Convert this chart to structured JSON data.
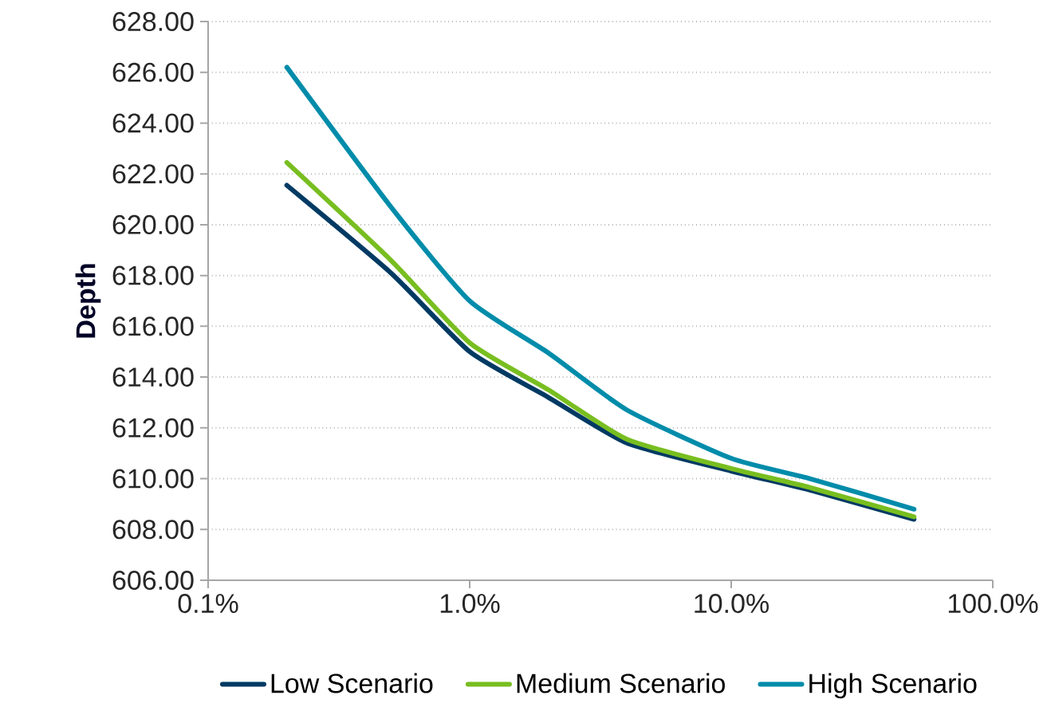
{
  "chart_data": {
    "type": "line",
    "ylabel": "Depth",
    "x": [
      0.2,
      0.5,
      1,
      2,
      4,
      10,
      20,
      50
    ],
    "series": [
      {
        "name": "Low Scenario",
        "color": "#003a63",
        "values": [
          621.55,
          618.1,
          615.0,
          613.2,
          611.4,
          610.3,
          609.55,
          608.4
        ]
      },
      {
        "name": "Medium Scenario",
        "color": "#78be20",
        "values": [
          622.45,
          618.6,
          615.35,
          613.5,
          611.55,
          610.4,
          609.65,
          608.5
        ]
      },
      {
        "name": "High Scenario",
        "color": "#008caa",
        "values": [
          626.2,
          620.7,
          617.0,
          614.95,
          612.7,
          610.8,
          610.0,
          608.8
        ]
      }
    ],
    "log": "x",
    "xlim": [
      0.1,
      100
    ],
    "xticks": [
      {
        "value": 0.1,
        "label": "0.1%"
      },
      {
        "value": 1,
        "label": "1.0%"
      },
      {
        "value": 10,
        "label": "10.0%"
      },
      {
        "value": 100,
        "label": "100.0%"
      }
    ],
    "ylim": [
      606,
      628
    ],
    "yticks": [
      {
        "value": 606,
        "label": "606.00"
      },
      {
        "value": 608,
        "label": "608.00"
      },
      {
        "value": 610,
        "label": "610.00"
      },
      {
        "value": 612,
        "label": "612.00"
      },
      {
        "value": 614,
        "label": "614.00"
      },
      {
        "value": 616,
        "label": "616.00"
      },
      {
        "value": 618,
        "label": "618.00"
      },
      {
        "value": 620,
        "label": "620.00"
      },
      {
        "value": 622,
        "label": "622.00"
      },
      {
        "value": 624,
        "label": "624.00"
      },
      {
        "value": 626,
        "label": "626.00"
      },
      {
        "value": 628,
        "label": "628.00"
      }
    ],
    "grid": "y",
    "legend": "bottom",
    "marker": "none",
    "line_style": "solid"
  }
}
